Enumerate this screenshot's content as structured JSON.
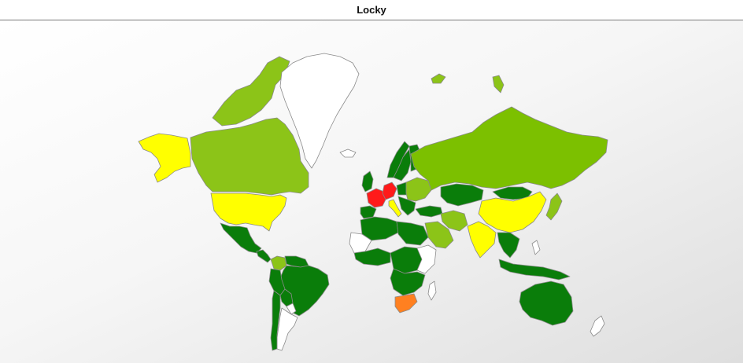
{
  "title": "Locky",
  "colors": {
    "none": "#ffffff",
    "low": "#0a7d0a",
    "low_mid": "#8cc418",
    "mid_low": "#7cc000",
    "mid": "#ffff00",
    "high": "#ff8020",
    "very_high": "#ff1a1a"
  },
  "regions": [
    {
      "id": "alaska",
      "level": "mid"
    },
    {
      "id": "canada",
      "level": "low_mid"
    },
    {
      "id": "canada-arctic",
      "level": "low_mid"
    },
    {
      "id": "greenland",
      "level": "none"
    },
    {
      "id": "usa",
      "level": "mid"
    },
    {
      "id": "mexico",
      "level": "low"
    },
    {
      "id": "central-america",
      "level": "low"
    },
    {
      "id": "colombia",
      "level": "low_mid"
    },
    {
      "id": "venezuela",
      "level": "low"
    },
    {
      "id": "brazil",
      "level": "low"
    },
    {
      "id": "peru",
      "level": "low"
    },
    {
      "id": "bolivia",
      "level": "low"
    },
    {
      "id": "paraguay",
      "level": "none"
    },
    {
      "id": "argentina",
      "level": "none"
    },
    {
      "id": "chile",
      "level": "low"
    },
    {
      "id": "iceland",
      "level": "none"
    },
    {
      "id": "uk",
      "level": "low"
    },
    {
      "id": "norway",
      "level": "low"
    },
    {
      "id": "sweden",
      "level": "low"
    },
    {
      "id": "finland",
      "level": "low"
    },
    {
      "id": "france",
      "level": "very_high"
    },
    {
      "id": "germany",
      "level": "very_high"
    },
    {
      "id": "spain",
      "level": "low"
    },
    {
      "id": "italy",
      "level": "mid"
    },
    {
      "id": "poland",
      "level": "low"
    },
    {
      "id": "east-europe",
      "level": "low_mid"
    },
    {
      "id": "balkans",
      "level": "low"
    },
    {
      "id": "turkey",
      "level": "low"
    },
    {
      "id": "russia",
      "level": "mid_low"
    },
    {
      "id": "kazakhstan",
      "level": "low"
    },
    {
      "id": "mongolia",
      "level": "low"
    },
    {
      "id": "china",
      "level": "mid"
    },
    {
      "id": "india",
      "level": "mid"
    },
    {
      "id": "iran",
      "level": "low_mid"
    },
    {
      "id": "arabia",
      "level": "low_mid"
    },
    {
      "id": "north-africa-west",
      "level": "low"
    },
    {
      "id": "north-africa-east",
      "level": "low"
    },
    {
      "id": "sahara",
      "level": "none"
    },
    {
      "id": "west-africa",
      "level": "low"
    },
    {
      "id": "central-africa",
      "level": "low"
    },
    {
      "id": "east-africa",
      "level": "none"
    },
    {
      "id": "southern-africa",
      "level": "low"
    },
    {
      "id": "south-africa",
      "level": "high"
    },
    {
      "id": "madagascar",
      "level": "none"
    },
    {
      "id": "southeast-asia",
      "level": "low"
    },
    {
      "id": "indonesia",
      "level": "low"
    },
    {
      "id": "philippines",
      "level": "none"
    },
    {
      "id": "japan",
      "level": "low_mid"
    },
    {
      "id": "australia",
      "level": "low"
    },
    {
      "id": "new-zealand",
      "level": "none"
    },
    {
      "id": "svalbard",
      "level": "low_mid"
    },
    {
      "id": "novaya-zemlya",
      "level": "low_mid"
    }
  ]
}
